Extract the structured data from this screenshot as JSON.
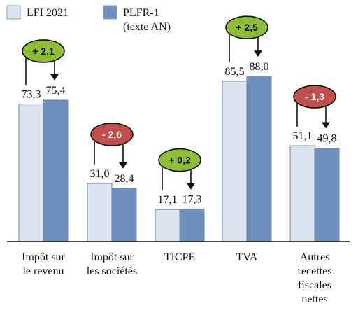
{
  "chart_data": {
    "type": "bar",
    "categories": [
      "Impôt sur\nle revenu",
      "Impôt sur\nles sociétés",
      "TICPE",
      "TVA",
      "Autres\nrecettes\nfiscales\nnettes"
    ],
    "series": [
      {
        "name": "LFI 2021",
        "values": [
          73.3,
          31.0,
          17.1,
          85.5,
          51.1
        ],
        "labels": [
          "73,3",
          "31,0",
          "17,1",
          "85,5",
          "51,1"
        ],
        "color": "#dbe3ef"
      },
      {
        "name": "PLFR-1\n(texte AN)",
        "values": [
          75.4,
          28.4,
          17.3,
          88.0,
          49.8
        ],
        "labels": [
          "75,4",
          "28,4",
          "17,3",
          "88,0",
          "49,8"
        ],
        "color": "#6f8fbd"
      }
    ],
    "deltas": [
      {
        "value": 2.1,
        "label": "+ 2,1",
        "color": "#8fbd3a"
      },
      {
        "value": -2.6,
        "label": "- 2,6",
        "color": "#c0504d"
      },
      {
        "value": 0.2,
        "label": "+ 0,2",
        "color": "#8fbd3a"
      },
      {
        "value": 2.5,
        "label": "+ 2,5",
        "color": "#8fbd3a"
      },
      {
        "value": -1.3,
        "label": "- 1,3",
        "color": "#c0504d"
      }
    ],
    "ylim": [
      0,
      100
    ],
    "grid": false,
    "legend_placement": "top-left"
  }
}
